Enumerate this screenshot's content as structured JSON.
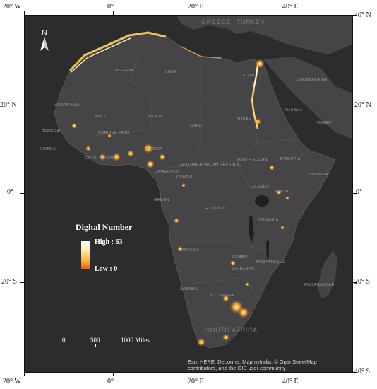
{
  "axes": {
    "top": [
      "20° W",
      "0°",
      "20° E",
      "40° E"
    ],
    "bottom": [
      "20° W",
      "0°",
      "20° E",
      "40° E"
    ],
    "left": [
      "20° N",
      "0°",
      "20° S"
    ],
    "right": [
      "40° N",
      "20° N",
      "0°",
      "20° S",
      "40° S"
    ]
  },
  "north_arrow": {
    "label": "N"
  },
  "legend": {
    "title": "Digital Number",
    "high_label": "High : 63",
    "low_label": "Low : 0",
    "colors": [
      "#ffffff",
      "#ffe8a0",
      "#ffb030",
      "#e05a10"
    ]
  },
  "scalebar": {
    "labels": [
      "0",
      "500",
      "1000 Miles"
    ]
  },
  "attribution": "Esri, HERE, DeLorme, MapmyIndia, © OpenStreetMap contributors, and the GIS user community",
  "country_labels": {
    "greece": "GREECE",
    "turkey": "TURKEY",
    "algeria": "ALGERIA",
    "libya": "LIBYA",
    "egypt": "EGYPT",
    "saudi": "SAUDI ARABIA",
    "mauritania": "MAURITANIA",
    "mali": "MALI",
    "niger": "NIGER",
    "chad": "CHAD",
    "sudan": "SUDAN",
    "yemen": "YEMEN",
    "senegal": "SENEGAL",
    "burkina": "BURKINA FASO",
    "guinea": "GUINEA",
    "cote": "COTE",
    "ghana": "GHANA",
    "nigeria": "NIGERIA",
    "cameroon": "CAMEROON",
    "car": "CENTRAL AFRICAN REPUBLIC",
    "south_sudan": "SOUTH SUDAN",
    "ethiopia": "ETHIOPIA",
    "somalia": "SOMALIA",
    "congo": "CONGO",
    "gabon": "GABON",
    "uganda": "UGANDA",
    "kenya": "KENYA",
    "drc": "DR CONGO",
    "tanzania": "TANZANIA",
    "angola": "ANGOLA",
    "zambia": "ZAMBIA",
    "mozambique": "MOZAMBIQUE",
    "zimbabwe": "ZIMBABWE",
    "madagascar": "MADAGASCAR",
    "namibia": "NAMIBIA",
    "botswana": "BOTSWANA",
    "south_africa": "SOUTH AFRICA",
    "red_sea": "Red Sea"
  }
}
